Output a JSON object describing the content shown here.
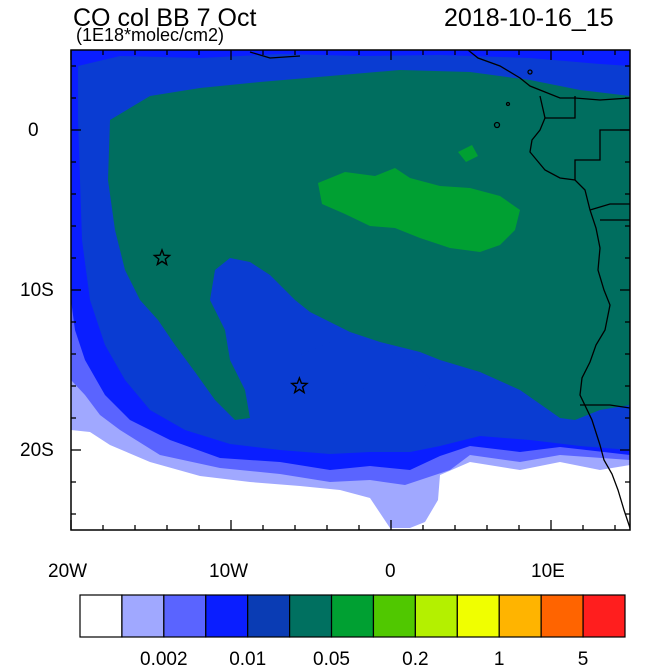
{
  "header": {
    "title": "CO col BB 7 Oct",
    "units": "(1E18*molec/cm2)",
    "timestamp": "2018-10-16_15"
  },
  "map": {
    "lon_range": [
      -20,
      15
    ],
    "lat_range": [
      -25,
      5
    ],
    "x_tick_labels": [
      "20W",
      "10W",
      "0",
      "10E"
    ],
    "y_tick_labels": [
      "0",
      "10S",
      "20S"
    ],
    "markers": [
      {
        "type": "star",
        "lon": -14.3,
        "lat": -8.0
      },
      {
        "type": "star",
        "lon": -5.7,
        "lat": -16.0
      }
    ],
    "land_color": "#006e5f",
    "ocean_color": "#0a3cd2"
  },
  "colorbar": {
    "colors": [
      "#ffffff",
      "#a0a8ff",
      "#5a64ff",
      "#0a1eff",
      "#0a3cb4",
      "#007060",
      "#00a032",
      "#50c800",
      "#b4f000",
      "#f0ff00",
      "#ffb400",
      "#ff6400",
      "#ff1e1e"
    ],
    "labels": [
      "0.002",
      "0.01",
      "0.05",
      "0.2",
      "1",
      "5"
    ]
  }
}
